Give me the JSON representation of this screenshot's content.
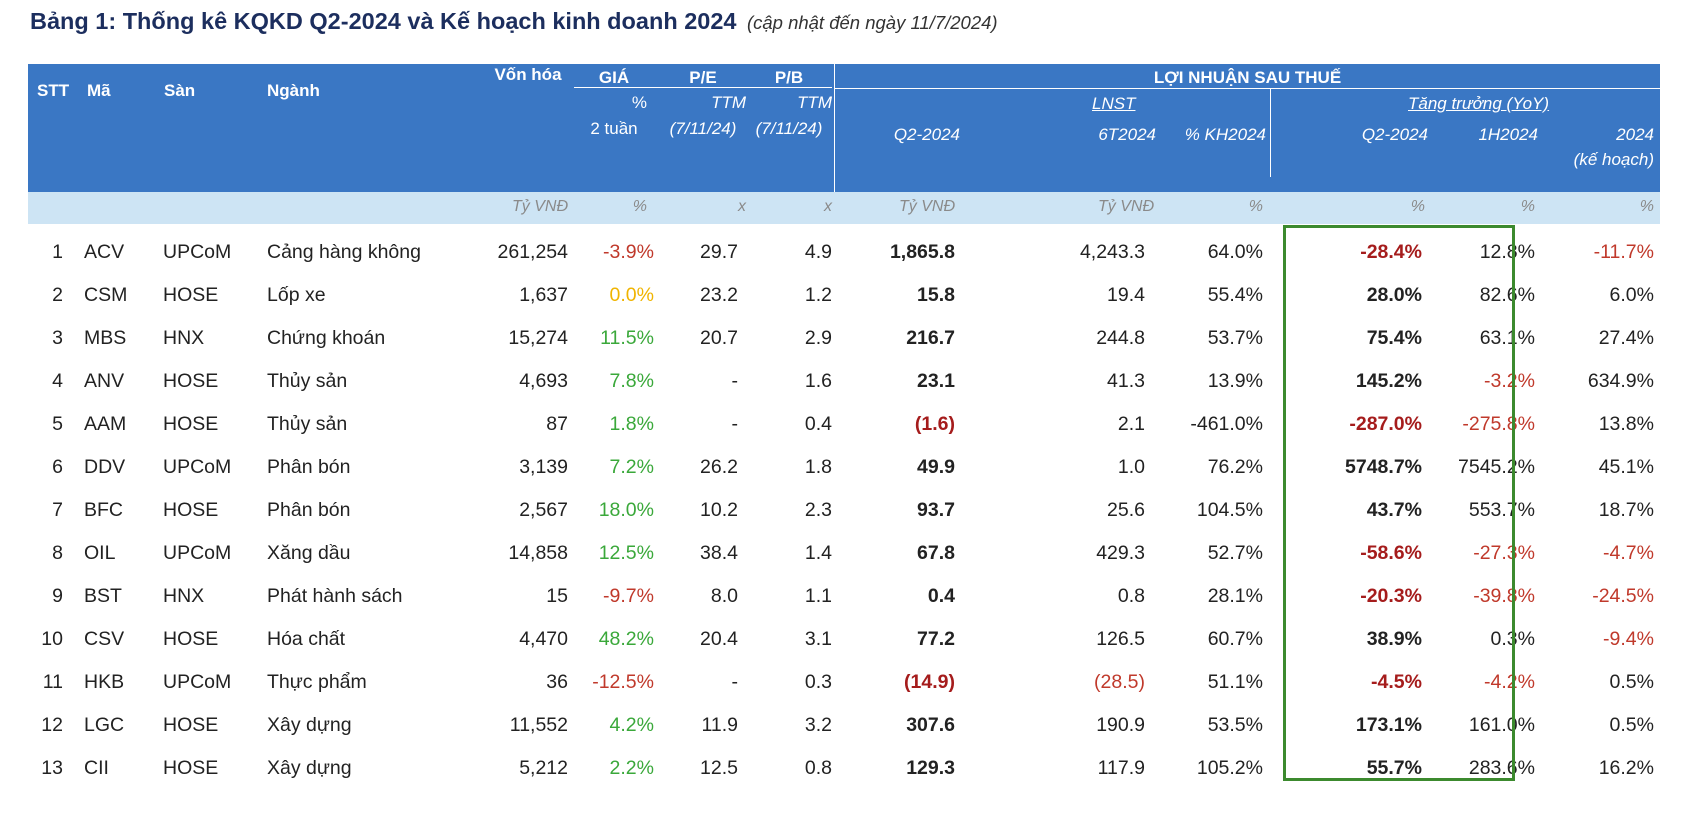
{
  "title": {
    "main": "Bảng 1: Thống kê KQKD Q2-2024 và Kế hoạch kinh doanh 2024",
    "note": "(cập nhật đến ngày 11/7/2024)"
  },
  "header": {
    "stt": "STT",
    "ma": "Mã",
    "san": "Sàn",
    "nganh": "Ngành",
    "von_hoa": "Vốn hóa",
    "gia": "GIÁ",
    "gia_sub1": "%",
    "gia_sub2": "2 tuần",
    "pe": "P/E",
    "pe_sub1": "TTM",
    "pe_sub2": "(7/11/24)",
    "pb": "P/B",
    "pb_sub1": "TTM",
    "pb_sub2": "(7/11/24)",
    "lnst_group": "LỢI NHUẬN SAU THUẾ",
    "lnst": "LNST",
    "tang_truong": "Tăng trưởng (YoY)",
    "q2_2024": "Q2-2024",
    "t6_2024": "6T2024",
    "kh2024": "% KH2024",
    "tt_q2_2024": "Q2-2024",
    "tt_1h2024": "1H2024",
    "tt_2024": "2024",
    "tt_2024_sub": "(kế hoạch)"
  },
  "units": {
    "von_hoa": "Tỷ VNĐ",
    "gia": "%",
    "pe": "x",
    "pb": "x",
    "q2": "Tỷ VNĐ",
    "t6": "Tỷ VNĐ",
    "kh": "%",
    "tt_q2": "%",
    "tt_1h": "%",
    "tt_2024": "%"
  },
  "rows": [
    {
      "stt": "1",
      "ma": "ACV",
      "san": "UPCoM",
      "nganh": "Cảng hàng không",
      "von_hoa": "261,254",
      "gia": "-3.9%",
      "pe": "29.7",
      "pb": "4.9",
      "q2": "1,865.8",
      "t6": "4,243.3",
      "kh": "64.0%",
      "tt_q2": "-28.4%",
      "tt_1h": "12.8%",
      "tt_2024": "-11.7%"
    },
    {
      "stt": "2",
      "ma": "CSM",
      "san": "HOSE",
      "nganh": "Lốp xe",
      "von_hoa": "1,637",
      "gia": "0.0%",
      "pe": "23.2",
      "pb": "1.2",
      "q2": "15.8",
      "t6": "19.4",
      "kh": "55.4%",
      "tt_q2": "28.0%",
      "tt_1h": "82.6%",
      "tt_2024": "6.0%"
    },
    {
      "stt": "3",
      "ma": "MBS",
      "san": "HNX",
      "nganh": "Chứng khoán",
      "von_hoa": "15,274",
      "gia": "11.5%",
      "pe": "20.7",
      "pb": "2.9",
      "q2": "216.7",
      "t6": "244.8",
      "kh": "53.7%",
      "tt_q2": "75.4%",
      "tt_1h": "63.1%",
      "tt_2024": "27.4%"
    },
    {
      "stt": "4",
      "ma": "ANV",
      "san": "HOSE",
      "nganh": "Thủy sản",
      "von_hoa": "4,693",
      "gia": "7.8%",
      "pe": "-",
      "pb": "1.6",
      "q2": "23.1",
      "t6": "41.3",
      "kh": "13.9%",
      "tt_q2": "145.2%",
      "tt_1h": "-3.2%",
      "tt_2024": "634.9%"
    },
    {
      "stt": "5",
      "ma": "AAM",
      "san": "HOSE",
      "nganh": "Thủy sản",
      "von_hoa": "87",
      "gia": "1.8%",
      "pe": "-",
      "pb": "0.4",
      "q2": "(1.6)",
      "t6": "2.1",
      "kh": "-461.0%",
      "tt_q2": "-287.0%",
      "tt_1h": "-275.8%",
      "tt_2024": "13.8%"
    },
    {
      "stt": "6",
      "ma": "DDV",
      "san": "UPCoM",
      "nganh": "Phân bón",
      "von_hoa": "3,139",
      "gia": "7.2%",
      "pe": "26.2",
      "pb": "1.8",
      "q2": "49.9",
      "t6": "1.0",
      "kh": "76.2%",
      "tt_q2": "5748.7%",
      "tt_1h": "7545.2%",
      "tt_2024": "45.1%"
    },
    {
      "stt": "7",
      "ma": "BFC",
      "san": "HOSE",
      "nganh": "Phân bón",
      "von_hoa": "2,567",
      "gia": "18.0%",
      "pe": "10.2",
      "pb": "2.3",
      "q2": "93.7",
      "t6": "25.6",
      "kh": "104.5%",
      "tt_q2": "43.7%",
      "tt_1h": "553.7%",
      "tt_2024": "18.7%"
    },
    {
      "stt": "8",
      "ma": "OIL",
      "san": "UPCoM",
      "nganh": "Xăng dầu",
      "von_hoa": "14,858",
      "gia": "12.5%",
      "pe": "38.4",
      "pb": "1.4",
      "q2": "67.8",
      "t6": "429.3",
      "kh": "52.7%",
      "tt_q2": "-58.6%",
      "tt_1h": "-27.3%",
      "tt_2024": "-4.7%"
    },
    {
      "stt": "9",
      "ma": "BST",
      "san": "HNX",
      "nganh": "Phát hành sách",
      "von_hoa": "15",
      "gia": "-9.7%",
      "pe": "8.0",
      "pb": "1.1",
      "q2": "0.4",
      "t6": "0.8",
      "kh": "28.1%",
      "tt_q2": "-20.3%",
      "tt_1h": "-39.8%",
      "tt_2024": "-24.5%"
    },
    {
      "stt": "10",
      "ma": "CSV",
      "san": "HOSE",
      "nganh": "Hóa chất",
      "von_hoa": "4,470",
      "gia": "48.2%",
      "pe": "20.4",
      "pb": "3.1",
      "q2": "77.2",
      "t6": "126.5",
      "kh": "60.7%",
      "tt_q2": "38.9%",
      "tt_1h": "0.3%",
      "tt_2024": "-9.4%"
    },
    {
      "stt": "11",
      "ma": "HKB",
      "san": "UPCoM",
      "nganh": "Thực phẩm",
      "von_hoa": "36",
      "gia": "-12.5%",
      "pe": "-",
      "pb": "0.3",
      "q2": "(14.9)",
      "t6": "(28.5)",
      "kh": "51.1%",
      "tt_q2": "-4.5%",
      "tt_1h": "-4.2%",
      "tt_2024": "0.5%"
    },
    {
      "stt": "12",
      "ma": "LGC",
      "san": "HOSE",
      "nganh": "Xây dựng",
      "von_hoa": "11,552",
      "gia": "4.2%",
      "pe": "11.9",
      "pb": "3.2",
      "q2": "307.6",
      "t6": "190.9",
      "kh": "53.5%",
      "tt_q2": "173.1%",
      "tt_1h": "161.0%",
      "tt_2024": "0.5%"
    },
    {
      "stt": "13",
      "ma": "CII",
      "san": "HOSE",
      "nganh": "Xây dựng",
      "von_hoa": "5,212",
      "gia": "2.2%",
      "pe": "12.5",
      "pb": "0.8",
      "q2": "129.3",
      "t6": "117.9",
      "kh": "105.2%",
      "tt_q2": "55.7%",
      "tt_1h": "283.6%",
      "tt_2024": "16.2%"
    }
  ]
}
